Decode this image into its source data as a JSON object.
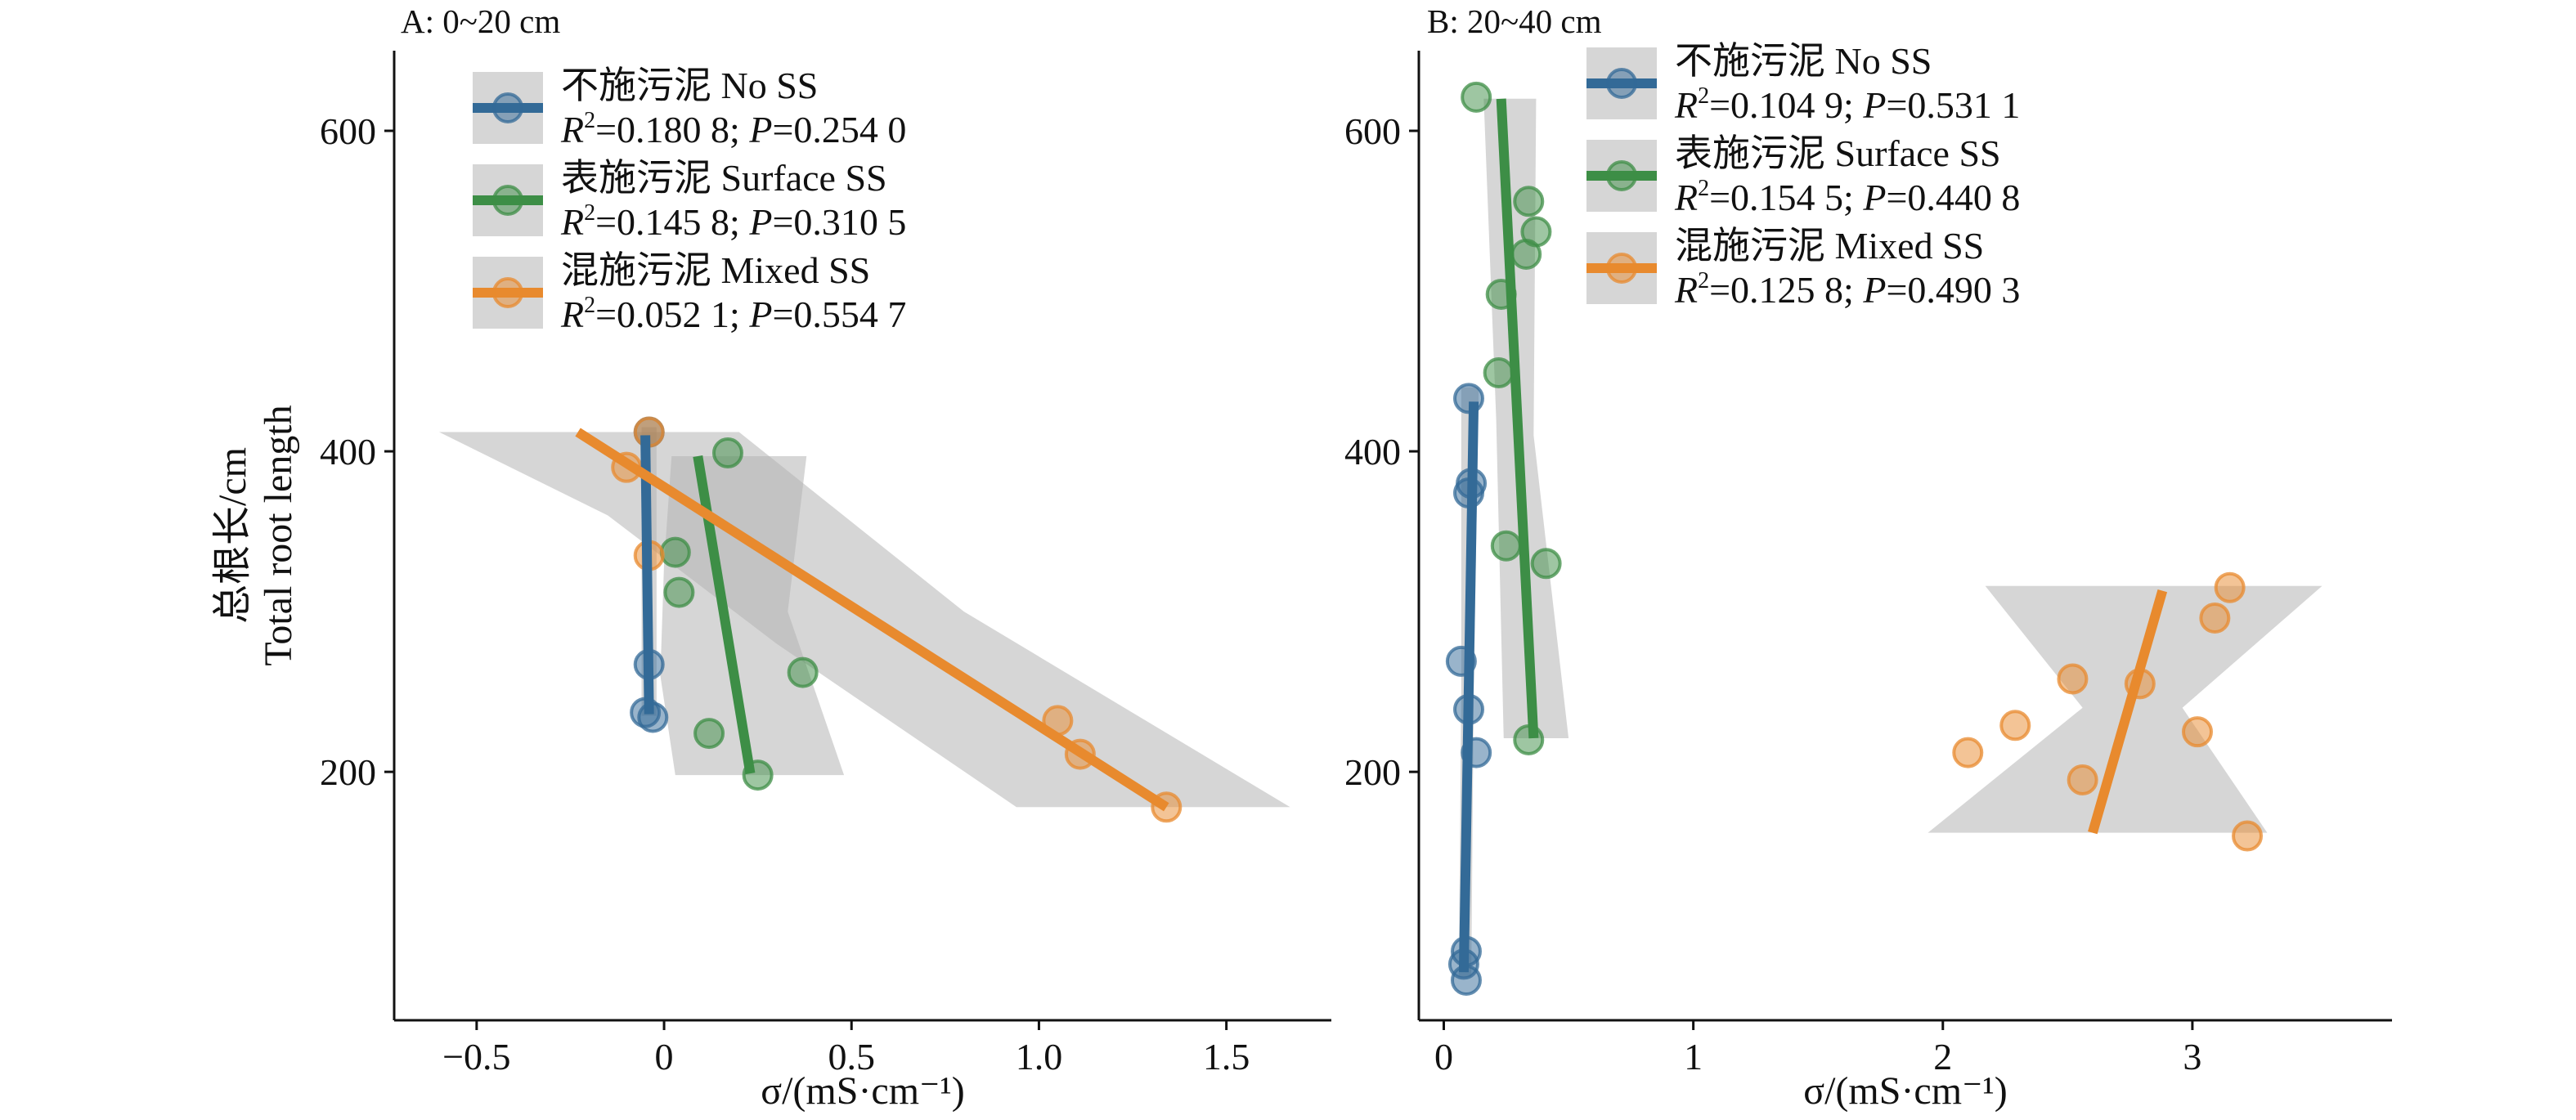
{
  "chart_data": [
    {
      "type": "scatter",
      "panel_title": "A: 0~20 cm",
      "xlabel": "σ/(mS·cm⁻¹)",
      "ylabel": [
        "总根长/cm",
        "Total root length"
      ],
      "xlim": [
        -0.72,
        1.78
      ],
      "ylim": [
        45,
        650
      ],
      "xticks": [
        -0.5,
        0,
        0.5,
        1.0,
        1.5
      ],
      "xtick_labels": [
        "−0.5",
        "0",
        "0.5",
        "1.0",
        "1.5"
      ],
      "yticks": [
        200,
        400,
        600
      ],
      "ytick_labels": [
        "200",
        "400",
        "600"
      ],
      "series": [
        {
          "name": "不施污泥 No SS",
          "stats": {
            "r2": "0.180 8",
            "p": "0.254 0"
          },
          "color": "#336a97",
          "points": [
            [
              -0.04,
              412
            ],
            [
              -0.05,
              237
            ],
            [
              -0.04,
              267
            ],
            [
              -0.03,
              234
            ]
          ],
          "fit": [
            [
              -0.05,
              410
            ],
            [
              -0.04,
              236
            ]
          ],
          "band": [
            [
              -0.06,
              415
            ],
            [
              -0.02,
              415
            ],
            [
              -0.02,
              235
            ],
            [
              -0.06,
              235
            ]
          ]
        },
        {
          "name": "表施污泥 Surface SS",
          "stats": {
            "r2": "0.145 8",
            "p": "0.310 5"
          },
          "color": "#3d8e46",
          "points": [
            [
              0.17,
              399
            ],
            [
              0.03,
              337
            ],
            [
              0.04,
              312
            ],
            [
              0.37,
              262
            ],
            [
              0.12,
              224
            ],
            [
              0.25,
              198
            ]
          ],
          "fit": [
            [
              0.09,
              397
            ],
            [
              0.23,
              199
            ]
          ],
          "band": [
            [
              0.02,
              397
            ],
            [
              0.38,
              397
            ],
            [
              0.33,
              300
            ],
            [
              0.48,
              198
            ],
            [
              0.03,
              198
            ],
            [
              -0.01,
              260
            ],
            [
              0.0,
              330
            ]
          ]
        },
        {
          "name": "混施污泥 Mixed SS",
          "stats": {
            "r2": "0.052 1",
            "p": "0.554 7"
          },
          "color": "#e88a2e",
          "points": [
            [
              -0.04,
              412
            ],
            [
              -0.1,
              390
            ],
            [
              -0.04,
              335
            ],
            [
              1.05,
              232
            ],
            [
              1.11,
              211
            ],
            [
              1.34,
              178
            ]
          ],
          "fit": [
            [
              -0.23,
              412
            ],
            [
              1.34,
              178
            ]
          ],
          "band": [
            [
              -0.6,
              412
            ],
            [
              0.2,
              412
            ],
            [
              0.8,
              300
            ],
            [
              1.67,
              178
            ],
            [
              0.94,
              178
            ],
            [
              0.3,
              280
            ],
            [
              -0.15,
              360
            ]
          ]
        }
      ]
    },
    {
      "type": "scatter",
      "panel_title": "B: 20~40 cm",
      "xlabel": "σ/(mS·cm⁻¹)",
      "ylabel": [],
      "xlim": [
        -0.1,
        3.8
      ],
      "ylim": [
        45,
        650
      ],
      "xticks": [
        0,
        1,
        2,
        3
      ],
      "xtick_labels": [
        "0",
        "1",
        "2",
        "3"
      ],
      "yticks": [
        200,
        400,
        600
      ],
      "ytick_labels": [
        "200",
        "400",
        "600"
      ],
      "series": [
        {
          "name": "不施污泥 No SS",
          "stats": {
            "r2": "0.104 9",
            "p": "0.531 1"
          },
          "color": "#336a97",
          "points": [
            [
              0.1,
              433
            ],
            [
              0.11,
              380
            ],
            [
              0.1,
              374
            ],
            [
              0.07,
              269
            ],
            [
              0.1,
              239
            ],
            [
              0.13,
              212
            ],
            [
              0.09,
              88
            ],
            [
              0.08,
              80
            ],
            [
              0.09,
              70
            ]
          ],
          "fit": [
            [
              0.12,
              431
            ],
            [
              0.08,
              75
            ]
          ],
          "band": [
            [
              0.07,
              440
            ],
            [
              0.14,
              440
            ],
            [
              0.12,
              250
            ],
            [
              0.11,
              72
            ],
            [
              0.06,
              72
            ],
            [
              0.07,
              250
            ]
          ]
        },
        {
          "name": "表施污泥 Surface SS",
          "stats": {
            "r2": "0.154 5",
            "p": "0.440 8"
          },
          "color": "#3d8e46",
          "points": [
            [
              0.13,
              621
            ],
            [
              0.34,
              556
            ],
            [
              0.37,
              537
            ],
            [
              0.33,
              523
            ],
            [
              0.23,
              498
            ],
            [
              0.22,
              449
            ],
            [
              0.25,
              341
            ],
            [
              0.41,
              330
            ],
            [
              0.34,
              220
            ]
          ],
          "fit": [
            [
              0.23,
              620
            ],
            [
              0.36,
              221
            ]
          ],
          "band": [
            [
              0.16,
              620
            ],
            [
              0.37,
              620
            ],
            [
              0.36,
              410
            ],
            [
              0.5,
              221
            ],
            [
              0.24,
              221
            ],
            [
              0.21,
              420
            ]
          ]
        },
        {
          "name": "混施污泥 Mixed SS",
          "stats": {
            "r2": "0.125 8",
            "p": "0.490 3"
          },
          "color": "#e88a2e",
          "points": [
            [
              3.15,
              315
            ],
            [
              3.09,
              296
            ],
            [
              2.52,
              258
            ],
            [
              2.79,
              255
            ],
            [
              2.29,
              229
            ],
            [
              3.02,
              225
            ],
            [
              2.1,
              212
            ],
            [
              2.56,
              195
            ],
            [
              3.22,
              160
            ]
          ],
          "fit": [
            [
              2.88,
              313
            ],
            [
              2.6,
              162
            ]
          ],
          "band": [
            [
              2.17,
              316
            ],
            [
              3.52,
              316
            ],
            [
              2.96,
              240
            ],
            [
              3.3,
              162
            ],
            [
              1.94,
              162
            ],
            [
              2.56,
              240
            ]
          ]
        }
      ]
    }
  ]
}
